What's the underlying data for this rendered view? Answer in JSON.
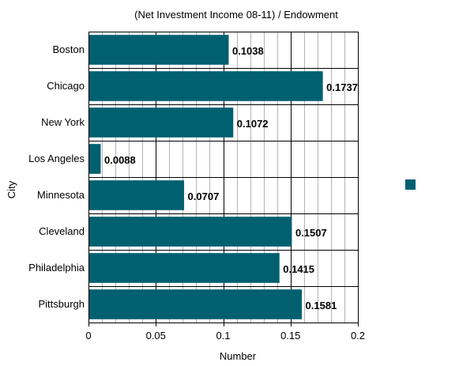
{
  "chart_data": {
    "type": "bar",
    "orientation": "horizontal",
    "title": "(Net Investment Income 08-11) / Endowment",
    "xlabel": "Number",
    "ylabel": "City",
    "xlim": [
      0,
      0.2
    ],
    "x_ticks": [
      0,
      0.05,
      0.1,
      0.15,
      0.2
    ],
    "x_tick_labels": [
      "0",
      "0.05",
      "0.1",
      "0.15",
      "0.2"
    ],
    "minor_grid_step": 0.01,
    "grid": true,
    "categories": [
      "Boston",
      "Chicago",
      "New York",
      "Los Angeles",
      "Minnesota",
      "Cleveland",
      "Philadelphia",
      "Pittsburgh"
    ],
    "values": [
      0.1038,
      0.1737,
      0.1072,
      0.0088,
      0.0707,
      0.1507,
      0.1415,
      0.1581
    ],
    "value_labels": [
      "0.1038",
      "0.1737",
      "0.1072",
      "0.0088",
      "0.0707",
      "0.1507",
      "0.1415",
      "0.1581"
    ],
    "bar_color": "#006070",
    "legend_placement": "right",
    "legend_entries": [
      ""
    ]
  }
}
